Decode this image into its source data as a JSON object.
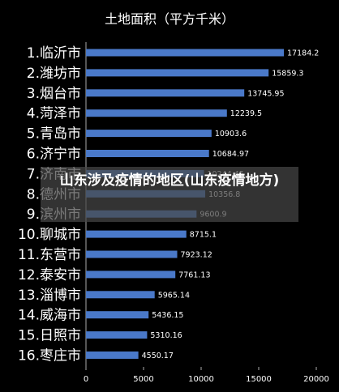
{
  "overlay": {
    "caption": "山东涉及疫情的地区(山东疫情地方)"
  },
  "colors": {
    "background": "#000000",
    "bar": "#4a79c9",
    "text": "#ffffff",
    "axis": "#aaaaaa"
  },
  "chart_data": {
    "type": "bar",
    "orientation": "horizontal",
    "title": "土地面积（平方千米）",
    "xlabel": "",
    "ylabel": "",
    "xlim": [
      0,
      20000
    ],
    "x_ticks": [
      0,
      5000,
      10000,
      15000,
      20000
    ],
    "grid": false,
    "legend": "none",
    "categories": [
      "1.临沂市",
      "2.潍坊市",
      "3.烟台市",
      "4.菏泽市",
      "5.青岛市",
      "6.济宁市",
      "7.济南市",
      "8.德州市",
      "9.滨州市",
      "10.聊城市",
      "11.东营市",
      "12.泰安市",
      "13.淄博市",
      "14.威海市",
      "15.日照市",
      "16.枣庄市"
    ],
    "values": [
      17184.2,
      15859.3,
      13745.95,
      12239.5,
      10903.6,
      10684.97,
      10244.45,
      10356.8,
      9600.9,
      8715.1,
      7923.12,
      7761.13,
      5965.14,
      5436.15,
      5310.16,
      4550.17
    ],
    "value_labels": [
      "17184.2",
      "15859.3",
      "13745.95",
      "12239.5",
      "10903.6",
      "10684.97",
      "10244.45",
      "10356.8",
      "9600.9",
      "8715.1",
      "7923.12",
      "7761.13",
      "5965.14",
      "5436.15",
      "5310.16",
      "4550.17"
    ]
  }
}
